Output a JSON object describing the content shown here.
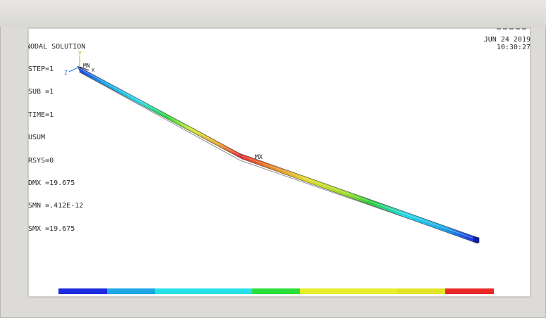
{
  "solution_info": {
    "title": "NODAL SOLUTION",
    "lines": [
      "STEP=1",
      "SUB =1",
      "TIME=1",
      "USUM",
      "RSYS=0",
      "DMX =19.675",
      "SMN =.412E-12",
      "SMX =19.675"
    ]
  },
  "timestamp": {
    "date": "JUN 24 2019",
    "time": "10:30:27"
  },
  "plot": {
    "max_label": "MX",
    "triad_y_label": "Y",
    "triad_z_label": "Z",
    "triad_x_label": "X",
    "node_label": "MN"
  },
  "contour_legend": {
    "colors": [
      "#1b2cde",
      "#1ea6e6",
      "#27e1e8",
      "#27e1e8",
      "#2bde3a",
      "#e9ee2c",
      "#e9ee2c",
      "#e3e42a",
      "#ea2828"
    ]
  }
}
